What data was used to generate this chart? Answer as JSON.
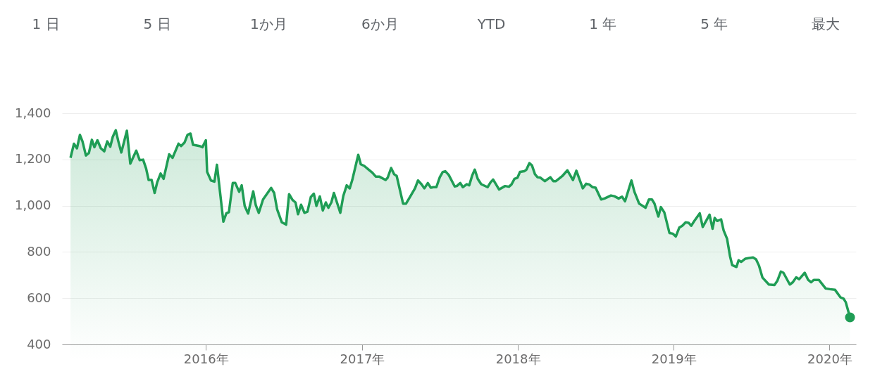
{
  "chart_data": {
    "type": "area",
    "annotations": [
      "1 日",
      "5 日",
      "1か月",
      "6か月",
      "YTD",
      "1 年",
      "5 年",
      "最大"
    ],
    "xlim": [
      "2015-01-29",
      "2020-03-03"
    ],
    "xticks": [
      {
        "value": "2016-01-01",
        "label": "2016年"
      },
      {
        "value": "2017-01-01",
        "label": "2017年"
      },
      {
        "value": "2018-01-01",
        "label": "2018年"
      },
      {
        "value": "2019-01-01",
        "label": "2019年"
      },
      {
        "value": "2020-01-01",
        "label": "2020年"
      }
    ],
    "ylim": [
      400,
      1400
    ],
    "yticks": [
      400,
      600,
      800,
      {
        "value": 1000,
        "label": "1,000"
      },
      {
        "value": 1200,
        "label": "1,200"
      },
      {
        "value": 1400,
        "label": "1,400"
      }
    ],
    "grid": "y",
    "series": [
      {
        "color": "#1f9d55",
        "x": [
          "2015-02-18",
          "2015-02-26",
          "2015-03-05",
          "2015-03-12",
          "2015-03-18",
          "2015-03-26",
          "2015-04-02",
          "2015-04-09",
          "2015-04-15",
          "2015-04-22",
          "2015-04-30",
          "2015-05-08",
          "2015-05-15",
          "2015-05-22",
          "2015-05-28",
          "2015-06-04",
          "2015-06-10",
          "2015-06-17",
          "2015-06-30",
          "2015-07-08",
          "2015-07-22",
          "2015-07-30",
          "2015-08-07",
          "2015-08-14",
          "2015-08-20",
          "2015-08-27",
          "2015-09-03",
          "2015-09-09",
          "2015-09-17",
          "2015-09-24",
          "2015-10-07",
          "2015-10-15",
          "2015-10-29",
          "2015-11-04",
          "2015-11-12",
          "2015-11-19",
          "2015-11-26",
          "2015-12-02",
          "2015-12-09",
          "2015-12-17",
          "2015-12-24",
          "2016-01-01",
          "2016-01-04",
          "2016-01-13",
          "2016-01-21",
          "2016-01-27",
          "2016-02-11",
          "2016-02-18",
          "2016-02-24",
          "2016-03-04",
          "2016-03-10",
          "2016-03-19",
          "2016-03-25",
          "2016-04-01",
          "2016-04-09",
          "2016-04-21",
          "2016-04-27",
          "2016-05-04",
          "2016-05-14",
          "2016-06-02",
          "2016-06-09",
          "2016-06-16",
          "2016-06-27",
          "2016-07-07",
          "2016-07-14",
          "2016-07-22",
          "2016-07-29",
          "2016-08-04",
          "2016-08-11",
          "2016-08-19",
          "2016-08-26",
          "2016-09-03",
          "2016-09-10",
          "2016-09-16",
          "2016-09-24",
          "2016-10-01",
          "2016-10-08",
          "2016-10-14",
          "2016-10-21",
          "2016-10-27",
          "2016-11-11",
          "2016-11-18",
          "2016-11-26",
          "2016-12-03",
          "2016-12-09",
          "2016-12-23",
          "2016-12-29",
          "2017-01-06",
          "2017-01-15",
          "2017-01-25",
          "2017-02-02",
          "2017-02-10",
          "2017-02-25",
          "2017-03-02",
          "2017-03-10",
          "2017-03-17",
          "2017-03-23",
          "2017-04-07",
          "2017-04-14",
          "2017-04-24",
          "2017-05-05",
          "2017-05-12",
          "2017-05-20",
          "2017-05-27",
          "2017-06-04",
          "2017-06-11",
          "2017-06-17",
          "2017-06-24",
          "2017-07-02",
          "2017-07-09",
          "2017-07-15",
          "2017-07-23",
          "2017-08-06",
          "2017-08-11",
          "2017-08-19",
          "2017-08-25",
          "2017-09-03",
          "2017-09-09",
          "2017-09-16",
          "2017-09-22",
          "2017-09-29",
          "2017-10-07",
          "2017-10-22",
          "2017-10-29",
          "2017-11-04",
          "2017-11-18",
          "2017-12-02",
          "2017-12-11",
          "2017-12-17",
          "2017-12-24",
          "2017-12-31",
          "2018-01-06",
          "2018-01-16",
          "2018-01-21",
          "2018-01-28",
          "2018-02-03",
          "2018-02-10",
          "2018-02-16",
          "2018-02-23",
          "2018-03-05",
          "2018-03-18",
          "2018-03-25",
          "2018-03-31",
          "2018-04-15",
          "2018-04-27",
          "2018-05-10",
          "2018-05-18",
          "2018-06-02",
          "2018-06-10",
          "2018-06-17",
          "2018-06-25",
          "2018-07-02",
          "2018-07-15",
          "2018-07-23",
          "2018-08-07",
          "2018-08-15",
          "2018-08-25",
          "2018-09-02",
          "2018-09-09",
          "2018-09-24",
          "2018-10-01",
          "2018-10-12",
          "2018-10-27",
          "2018-11-04",
          "2018-11-11",
          "2018-11-17",
          "2018-11-26",
          "2018-12-02",
          "2018-12-10",
          "2018-12-22",
          "2018-12-30",
          "2019-01-06",
          "2019-01-14",
          "2019-01-21",
          "2019-01-29",
          "2019-02-05",
          "2019-02-11",
          "2019-02-19",
          "2019-03-03",
          "2019-03-10",
          "2019-03-26",
          "2019-04-02",
          "2019-04-07",
          "2019-04-13",
          "2019-04-22",
          "2019-04-28",
          "2019-05-06",
          "2019-05-13",
          "2019-05-18",
          "2019-05-28",
          "2019-06-02",
          "2019-06-08",
          "2019-06-18",
          "2019-06-27",
          "2019-07-06",
          "2019-07-13",
          "2019-07-20",
          "2019-07-28",
          "2019-08-12",
          "2019-08-25",
          "2019-09-01",
          "2019-09-09",
          "2019-09-15",
          "2019-09-30",
          "2019-10-07",
          "2019-10-15",
          "2019-10-22",
          "2019-11-04",
          "2019-11-12",
          "2019-11-19",
          "2019-11-25",
          "2019-12-07",
          "2019-12-23",
          "2020-01-02",
          "2020-01-14",
          "2020-01-27",
          "2020-02-03",
          "2020-02-08",
          "2020-02-18"
        ],
        "values": [
          1207,
          1268,
          1248,
          1306,
          1278,
          1217,
          1228,
          1285,
          1253,
          1283,
          1248,
          1235,
          1278,
          1255,
          1298,
          1326,
          1278,
          1230,
          1324,
          1182,
          1238,
          1197,
          1199,
          1161,
          1111,
          1111,
          1055,
          1101,
          1139,
          1116,
          1222,
          1207,
          1268,
          1258,
          1273,
          1306,
          1312,
          1263,
          1261,
          1258,
          1253,
          1283,
          1146,
          1109,
          1104,
          1177,
          931,
          967,
          972,
          1098,
          1098,
          1060,
          1088,
          999,
          966,
          1062,
          1002,
          969,
          1027,
          1077,
          1055,
          984,
          928,
          918,
          1050,
          1025,
          1014,
          963,
          1004,
          969,
          974,
          1038,
          1052,
          999,
          1040,
          979,
          1014,
          991,
          1014,
          1055,
          969,
          1042,
          1088,
          1075,
          1111,
          1220,
          1179,
          1172,
          1158,
          1143,
          1126,
          1126,
          1111,
          1121,
          1163,
          1136,
          1129,
          1009,
          1009,
          1040,
          1075,
          1109,
          1093,
          1075,
          1098,
          1078,
          1080,
          1080,
          1123,
          1146,
          1149,
          1133,
          1083,
          1085,
          1098,
          1080,
          1093,
          1088,
          1131,
          1156,
          1116,
          1093,
          1080,
          1101,
          1113,
          1070,
          1085,
          1082,
          1092,
          1116,
          1121,
          1146,
          1149,
          1156,
          1184,
          1174,
          1136,
          1123,
          1121,
          1106,
          1123,
          1106,
          1106,
          1128,
          1153,
          1111,
          1151,
          1075,
          1095,
          1092,
          1080,
          1078,
          1027,
          1031,
          1044,
          1041,
          1031,
          1039,
          1019,
          1109,
          1060,
          1009,
          991,
          1027,
          1027,
          1009,
          953,
          994,
          971,
          882,
          879,
          867,
          905,
          913,
          928,
          926,
          913,
          936,
          967,
          908,
          961,
          900,
          947,
          934,
          941,
          893,
          857,
          781,
          743,
          735,
          764,
          757,
          771,
          774,
          776,
          768,
          740,
          689,
          659,
          657,
          676,
          715,
          710,
          659,
          669,
          690,
          682,
          710,
          679,
          669,
          679,
          679,
          642,
          639,
          636,
          603,
          598,
          583,
          517
        ]
      },
      {
        "type": "scatter",
        "color": "#1f9d55",
        "x": [
          "2020-02-18"
        ],
        "values": [
          517
        ]
      }
    ]
  }
}
